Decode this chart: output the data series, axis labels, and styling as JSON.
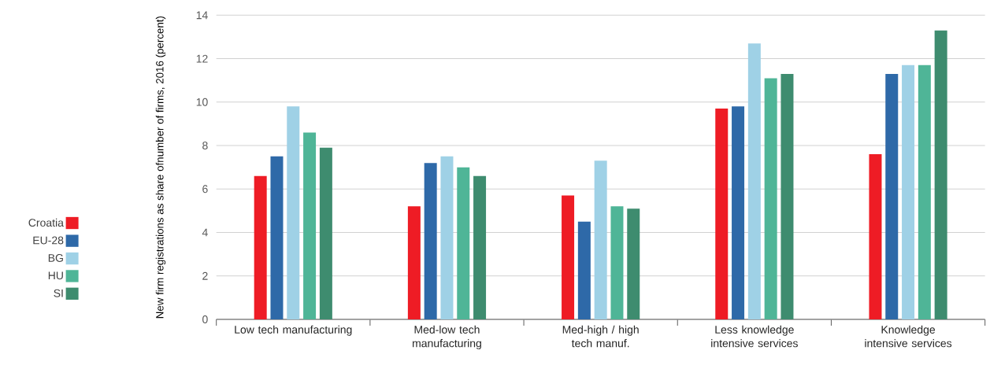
{
  "chart_data": {
    "type": "bar",
    "ylabel": "New firm registrations as share ofnumber of firms, 2016 (percent)",
    "categories": [
      "Low tech manufacturing",
      "Med-low tech manufacturing",
      "Med-high / high tech manuf.",
      "Less knowledge intensive services",
      "Knowledge intensive services"
    ],
    "series": [
      {
        "name": "Croatia",
        "color": "#ee1c25",
        "values": [
          6.6,
          5.2,
          5.7,
          9.7,
          7.6
        ]
      },
      {
        "name": "EU-28",
        "color": "#2e69a8",
        "values": [
          7.5,
          7.2,
          4.5,
          9.8,
          11.3
        ]
      },
      {
        "name": "BG",
        "color": "#9fd1e6",
        "values": [
          9.8,
          7.5,
          7.3,
          12.7,
          11.7
        ]
      },
      {
        "name": "HU",
        "color": "#4fb597",
        "values": [
          8.6,
          7.0,
          5.2,
          11.1,
          11.7
        ]
      },
      {
        "name": "SI",
        "color": "#3e8c6f",
        "values": [
          7.9,
          6.6,
          5.1,
          11.3,
          13.3
        ]
      }
    ],
    "ylim": [
      0,
      14
    ],
    "yticks": [
      0,
      2,
      4,
      6,
      8,
      10,
      12,
      14
    ],
    "grid": "y",
    "legend": "left"
  }
}
